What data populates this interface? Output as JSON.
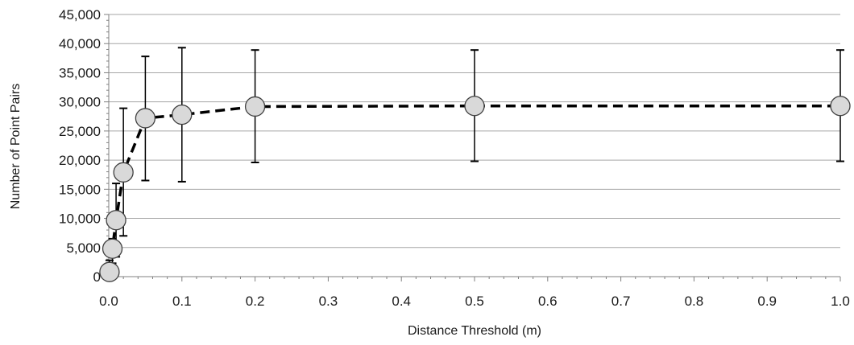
{
  "chart_data": {
    "type": "scatter",
    "title": "",
    "xlabel": "Distance Threshold (m)",
    "ylabel": "Number of Point Pairs",
    "xlim": [
      0,
      1.0
    ],
    "ylim": [
      0,
      45000
    ],
    "x_ticks": [
      "0.0",
      "0.1",
      "0.2",
      "0.3",
      "0.4",
      "0.5",
      "0.6",
      "0.7",
      "0.8",
      "0.9",
      "1.0"
    ],
    "x_tick_values": [
      0,
      0.1,
      0.2,
      0.3,
      0.4,
      0.5,
      0.6,
      0.7,
      0.8,
      0.9,
      1.0
    ],
    "y_ticks": [
      "0",
      "5,000",
      "10,000",
      "15,000",
      "20,000",
      "25,000",
      "30,000",
      "35,000",
      "40,000",
      "45,000"
    ],
    "y_tick_values": [
      0,
      5000,
      10000,
      15000,
      20000,
      25000,
      30000,
      35000,
      40000,
      45000
    ],
    "grid": "horizontal",
    "legend": "none",
    "series": [
      {
        "x": [
          0.001,
          0.005,
          0.01,
          0.02,
          0.05,
          0.1,
          0.2,
          0.5,
          1.0
        ],
        "y": [
          800,
          4800,
          9700,
          17900,
          27200,
          27800,
          29200,
          29300,
          29300
        ],
        "y_err_low": [
          200,
          2300,
          3400,
          7000,
          16500,
          16300,
          19600,
          19800,
          19800
        ],
        "y_err_high": [
          2800,
          6500,
          16000,
          28900,
          37800,
          39300,
          38900,
          38900,
          38900
        ]
      }
    ],
    "marker_fill": "#d9d9d9",
    "marker_stroke": "#404040",
    "line_color": "#000000",
    "line_style": "dashed",
    "grid_color": "#a6a6a6"
  }
}
